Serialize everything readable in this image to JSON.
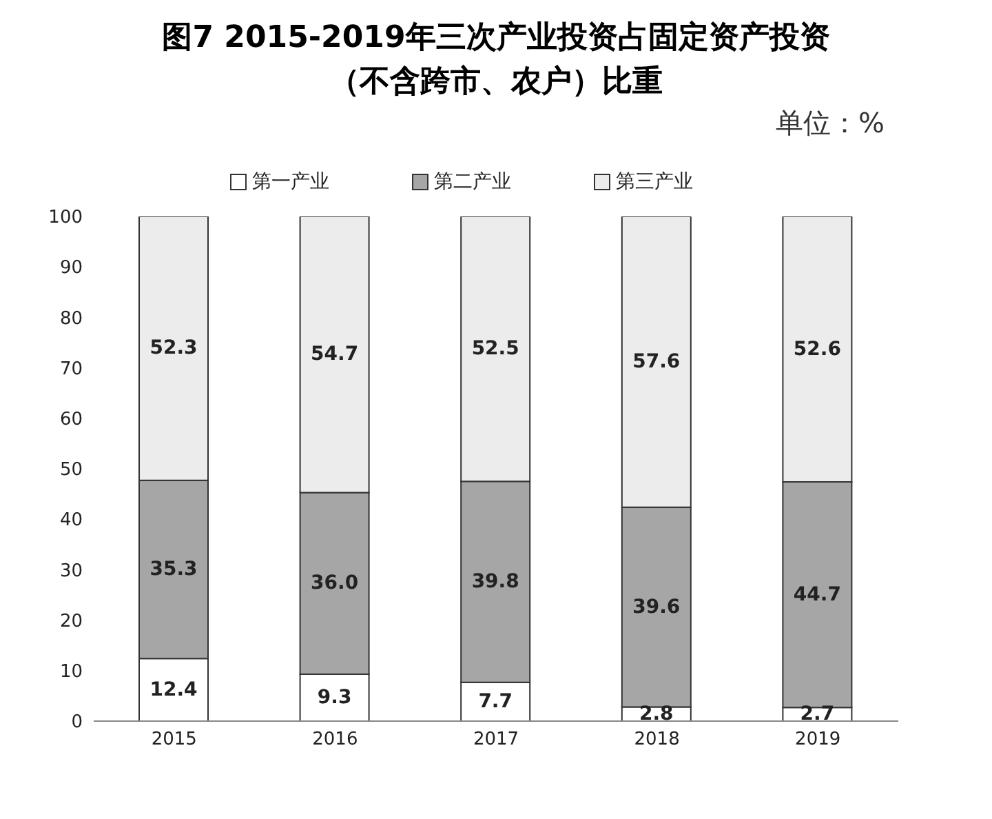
{
  "chart_data": {
    "type": "bar",
    "title": "图7 2015-2019年三次产业投资占固定资产投资（不含跨市、农户）比重",
    "annotations": [
      "单位：%"
    ],
    "categories": [
      "2015",
      "2016",
      "2017",
      "2018",
      "2019"
    ],
    "stacked": true,
    "legend": "top",
    "grid": false,
    "ylim": [
      0,
      100
    ],
    "yticks": [
      0,
      10,
      20,
      30,
      40,
      50,
      60,
      70,
      80,
      90,
      100
    ],
    "series": [
      {
        "name": "第一产业",
        "color": "#ffffff",
        "values": [
          12.4,
          9.3,
          7.7,
          2.8,
          2.7
        ],
        "value_labels": [
          "12.4",
          "9.3",
          "7.7",
          "2.8",
          "2.7"
        ]
      },
      {
        "name": "第二产业",
        "color": "#a6a6a6",
        "values": [
          35.3,
          36.0,
          39.8,
          39.6,
          44.7
        ],
        "value_labels": [
          "35.3",
          "36.0",
          "39.8",
          "39.6",
          "44.7"
        ]
      },
      {
        "name": "第三产业",
        "color": "#ececec",
        "values": [
          52.3,
          54.7,
          52.5,
          57.6,
          52.6
        ],
        "value_labels": [
          "52.3",
          "54.7",
          "52.5",
          "57.6",
          "52.6"
        ]
      }
    ]
  }
}
